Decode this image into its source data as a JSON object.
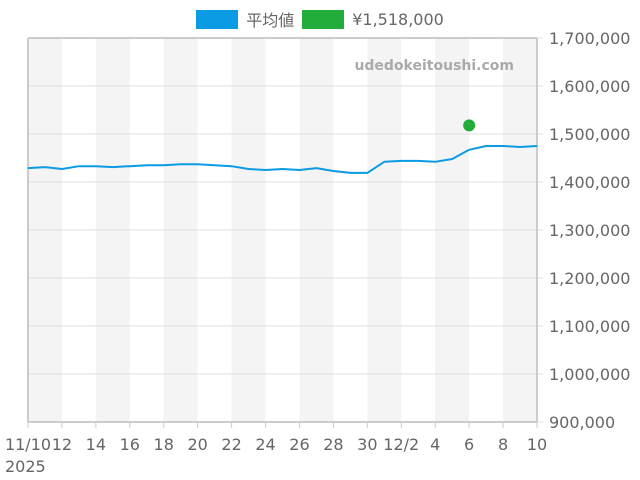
{
  "legend": [
    {
      "label": "平均値",
      "color": "#0a9be4"
    },
    {
      "label": "¥1,518,000",
      "color": "#22ad3a"
    }
  ],
  "watermark": "udedokeitoushi.com",
  "chart_data": {
    "type": "line",
    "title": "",
    "xlabel": "",
    "ylabel": "",
    "ylim": [
      900000,
      1700000
    ],
    "y_ticks": [
      "1,700,000",
      "1,600,000",
      "1,500,000",
      "1,400,000",
      "1,300,000",
      "1,200,000",
      "1,100,000",
      "1,000,000",
      "900,000"
    ],
    "x_ticks": [
      "11/10",
      "12",
      "14",
      "16",
      "18",
      "20",
      "22",
      "24",
      "26",
      "28",
      "30",
      "12/2",
      "4",
      "6",
      "8",
      "10"
    ],
    "x_year_label": "2025",
    "x": [
      "11/10",
      "11/11",
      "11/12",
      "11/13",
      "11/14",
      "11/15",
      "11/16",
      "11/17",
      "11/18",
      "11/19",
      "11/20",
      "11/21",
      "11/22",
      "11/23",
      "11/24",
      "11/25",
      "11/26",
      "11/27",
      "11/28",
      "11/29",
      "11/30",
      "12/1",
      "12/2",
      "12/3",
      "12/4",
      "12/5",
      "12/6",
      "12/7",
      "12/8",
      "12/9",
      "12/10"
    ],
    "series": [
      {
        "name": "平均値",
        "color": "#0a9be4",
        "values": [
          1429000,
          1431000,
          1427000,
          1433000,
          1433000,
          1431000,
          1433000,
          1435000,
          1435000,
          1437000,
          1437000,
          1435000,
          1433000,
          1427000,
          1425000,
          1427000,
          1425000,
          1429000,
          1423000,
          1419000,
          1419000,
          1442000,
          1444000,
          1444000,
          1442000,
          1448000,
          1467000,
          1475000,
          1475000,
          1473000,
          1475000
        ]
      },
      {
        "name": "¥1,518,000",
        "color": "#22ad3a",
        "type": "point",
        "x": "12/6",
        "value": 1518000
      }
    ],
    "grid": true,
    "legend_position": "top"
  }
}
